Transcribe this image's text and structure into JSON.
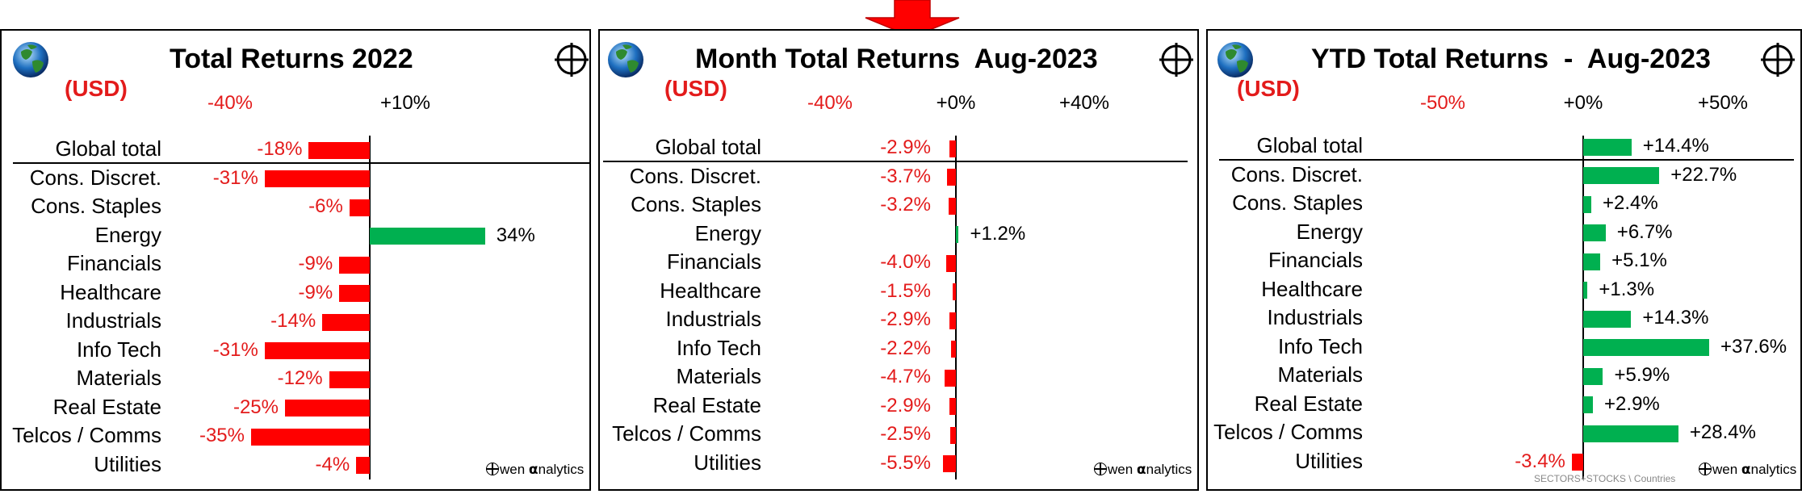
{
  "brand": {
    "prefix": "wen ",
    "alpha": "α",
    "suffix": "nalytics"
  },
  "chart_data": [
    {
      "type": "bar",
      "orientation": "horizontal",
      "title": "Total Returns 2022",
      "currency": "(USD)",
      "axis_ticks": [
        "-40%",
        "+10%"
      ],
      "xlim": [
        -40,
        40
      ],
      "categories": [
        "Global total",
        "Cons. Discret.",
        "Cons. Staples",
        "Energy",
        "Financials",
        "Healthcare",
        "Industrials",
        "Info Tech",
        "Materials",
        "Real Estate",
        "Telcos / Comms",
        "Utilities"
      ],
      "values": [
        -18,
        -31,
        -6,
        34,
        -9,
        -9,
        -14,
        -31,
        -12,
        -25,
        -35,
        -4
      ],
      "value_labels": [
        "-18%",
        "-31%",
        "-6%",
        "34%",
        "-9%",
        "-9%",
        "-14%",
        "-31%",
        "-12%",
        "-25%",
        "-35%",
        "-4%"
      ],
      "colors": {
        "negative": "#ff0000",
        "positive": "#00b050"
      }
    },
    {
      "type": "bar",
      "orientation": "horizontal",
      "title": "Month Total Returns  Aug-2023",
      "currency": "(USD)",
      "axis_ticks": [
        "-40%",
        "+0%",
        "+40%"
      ],
      "xlim": [
        -40,
        40
      ],
      "categories": [
        "Global total",
        "Cons. Discret.",
        "Cons. Staples",
        "Energy",
        "Financials",
        "Healthcare",
        "Industrials",
        "Info Tech",
        "Materials",
        "Real Estate",
        "Telcos / Comms",
        "Utilities"
      ],
      "values": [
        -2.9,
        -3.7,
        -3.2,
        1.2,
        -4.0,
        -1.5,
        -2.9,
        -2.2,
        -4.7,
        -2.9,
        -2.5,
        -5.5
      ],
      "value_labels": [
        "-2.9%",
        "-3.7%",
        "-3.2%",
        "+1.2%",
        "-4.0%",
        "-1.5%",
        "-2.9%",
        "-2.2%",
        "-4.7%",
        "-2.9%",
        "-2.5%",
        "-5.5%"
      ],
      "colors": {
        "negative": "#ff0000",
        "positive": "#00b050"
      }
    },
    {
      "type": "bar",
      "orientation": "horizontal",
      "title": "YTD Total Returns  -  Aug-2023",
      "currency": "(USD)",
      "axis_ticks": [
        "-50%",
        "+0%",
        "+50%"
      ],
      "xlim": [
        -50,
        50
      ],
      "categories": [
        "Global total",
        "Cons. Discret.",
        "Cons. Staples",
        "Energy",
        "Financials",
        "Healthcare",
        "Industrials",
        "Info Tech",
        "Materials",
        "Real Estate",
        "Telcos / Comms",
        "Utilities"
      ],
      "values": [
        14.4,
        22.7,
        2.4,
        6.7,
        5.1,
        1.3,
        14.3,
        37.6,
        5.9,
        2.9,
        28.4,
        -3.4
      ],
      "value_labels": [
        "+14.4%",
        "+22.7%",
        "+2.4%",
        "+6.7%",
        "+5.1%",
        "+1.3%",
        "+14.3%",
        "+37.6%",
        "+5.9%",
        "+2.9%",
        "+28.4%",
        "-3.4%"
      ],
      "footnote": "SECTORS+STOCKS \\ Countries",
      "colors": {
        "negative": "#ff0000",
        "positive": "#00b050"
      }
    }
  ]
}
